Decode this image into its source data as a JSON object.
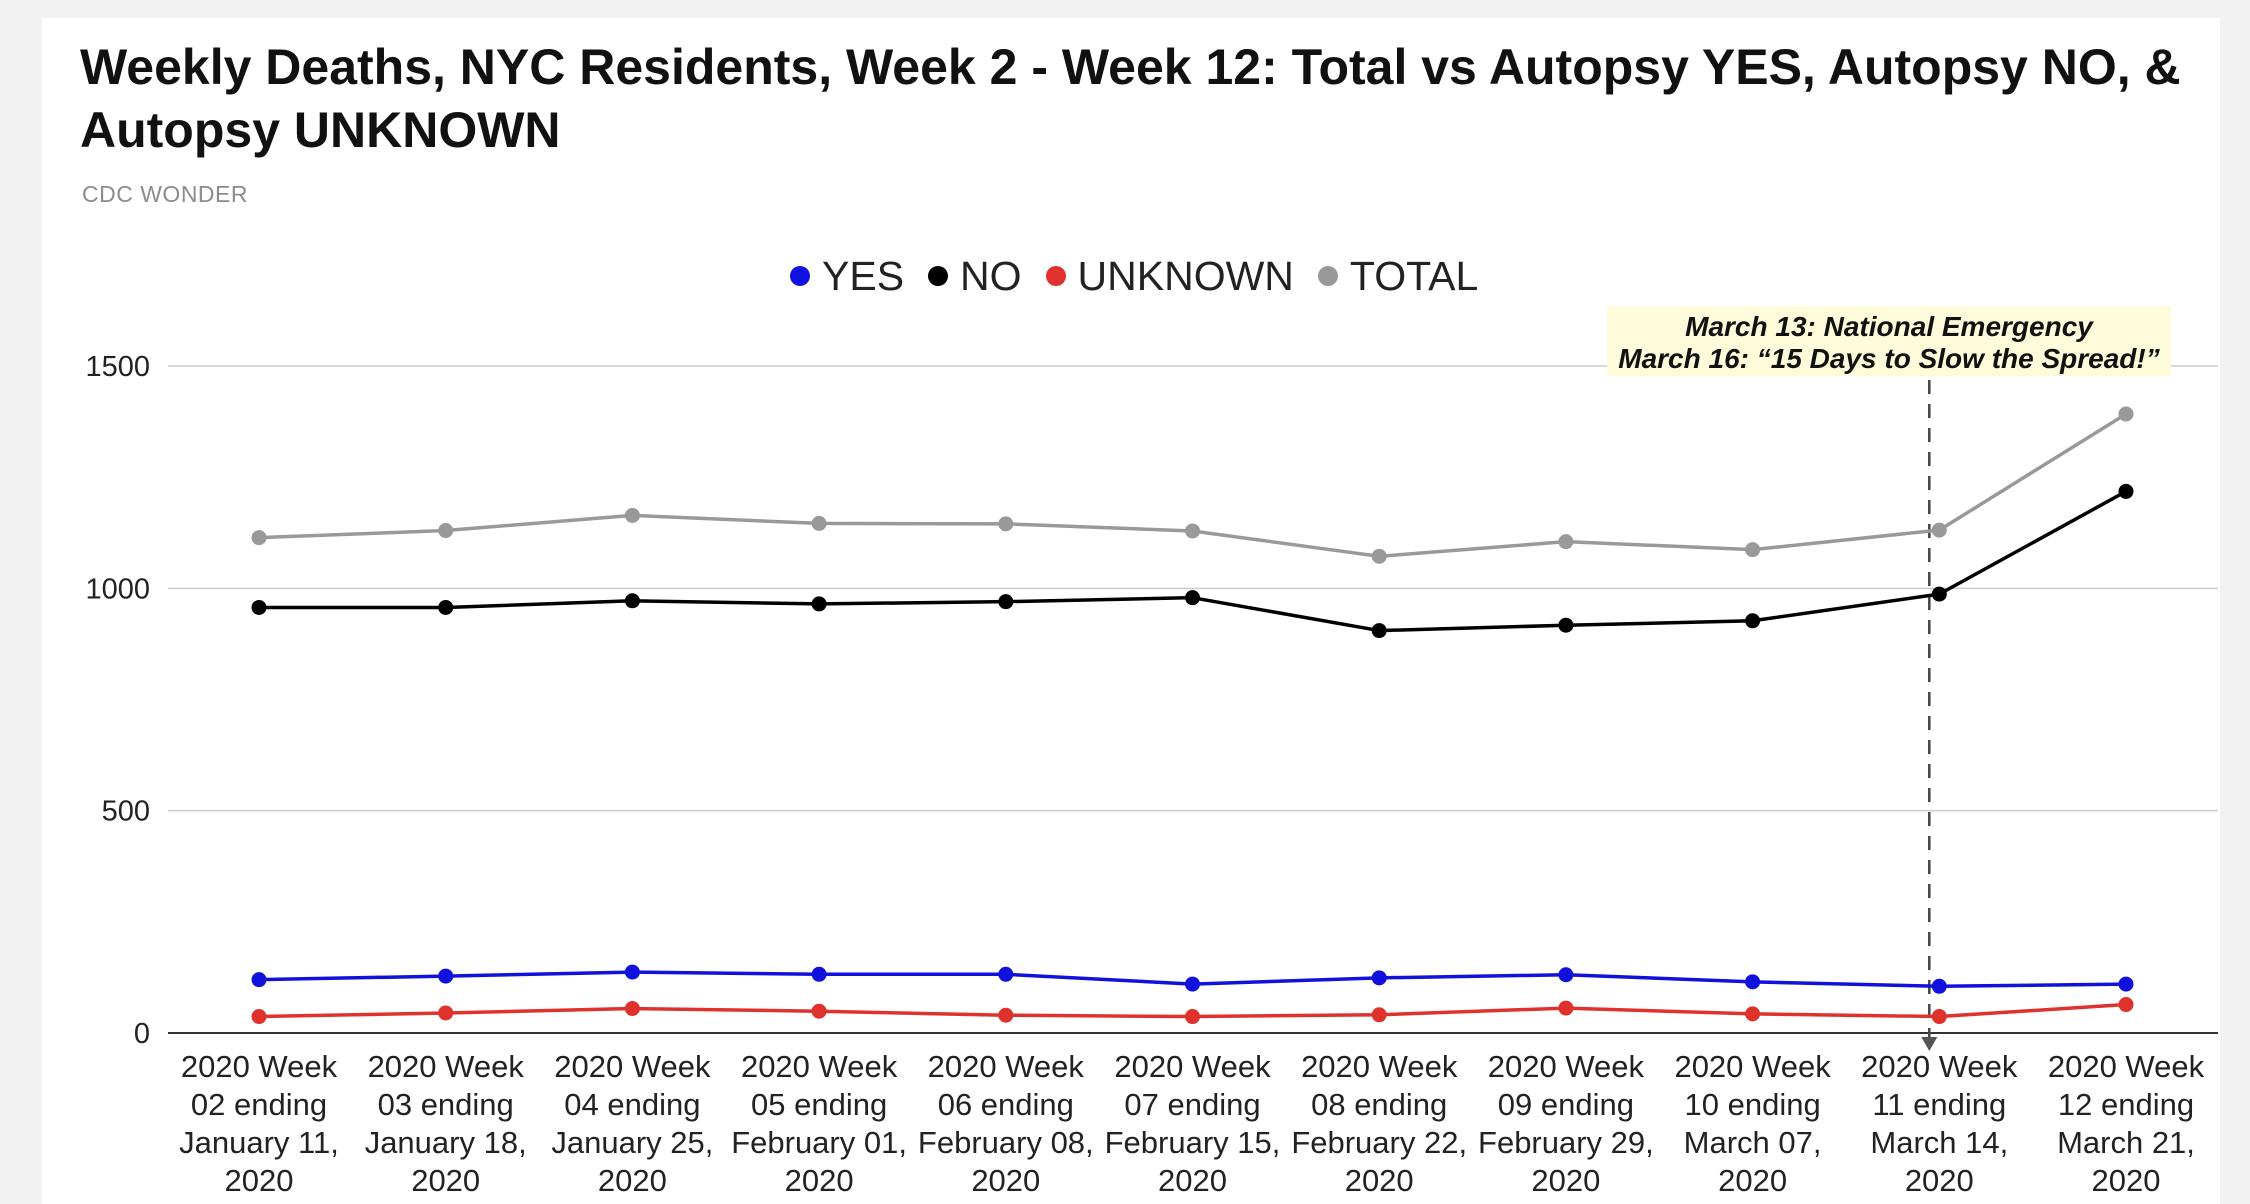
{
  "chart_data": {
    "type": "line",
    "title": "Weekly Deaths, NYC Residents, Week 2 - Week 12: Total vs Autopsy YES, Autopsy NO, & Autopsy UNKNOWN",
    "subtitle": "CDC WONDER",
    "xlabel": "",
    "ylabel": "",
    "ylim": [
      0,
      1500
    ],
    "yticks": [
      "0",
      "500",
      "1000",
      "1500"
    ],
    "grid": true,
    "legend_position": "top",
    "categories": [
      [
        "2020 Week",
        "02 ending",
        "January 11,",
        "2020"
      ],
      [
        "2020 Week",
        "03 ending",
        "January 18,",
        "2020"
      ],
      [
        "2020 Week",
        "04 ending",
        "January 25,",
        "2020"
      ],
      [
        "2020 Week",
        "05 ending",
        "February 01,",
        "2020"
      ],
      [
        "2020 Week",
        "06 ending",
        "February 08,",
        "2020"
      ],
      [
        "2020 Week",
        "07 ending",
        "February 15,",
        "2020"
      ],
      [
        "2020 Week",
        "08 ending",
        "February 22,",
        "2020"
      ],
      [
        "2020 Week",
        "09 ending",
        "February 29,",
        "2020"
      ],
      [
        "2020 Week",
        "10 ending",
        "March 07,",
        "2020"
      ],
      [
        "2020 Week",
        "11 ending",
        "March 14,",
        "2020"
      ],
      [
        "2020 Week",
        "12 ending",
        "March 21,",
        "2020"
      ]
    ],
    "series": [
      {
        "name": "YES",
        "color": "#1111dd",
        "values": [
          120,
          128,
          137,
          132,
          132,
          110,
          124,
          131,
          115,
          105,
          110
        ]
      },
      {
        "name": "NO",
        "color": "#000000",
        "values": [
          957,
          957,
          972,
          965,
          970,
          979,
          905,
          917,
          927,
          987,
          1218
        ]
      },
      {
        "name": "UNKNOWN",
        "color": "#e0322c",
        "values": [
          37,
          45,
          55,
          49,
          40,
          37,
          41,
          56,
          43,
          37,
          64
        ]
      },
      {
        "name": "TOTAL",
        "color": "#999999",
        "values": [
          1114,
          1130,
          1164,
          1146,
          1145,
          1129,
          1072,
          1105,
          1087,
          1131,
          1392
        ]
      }
    ],
    "annotation": {
      "lines": [
        "March 13: National Emergency",
        "March 16: “15 Days to Slow the Spread!”"
      ],
      "category_index": 9,
      "background": "#fdfbd9"
    }
  }
}
